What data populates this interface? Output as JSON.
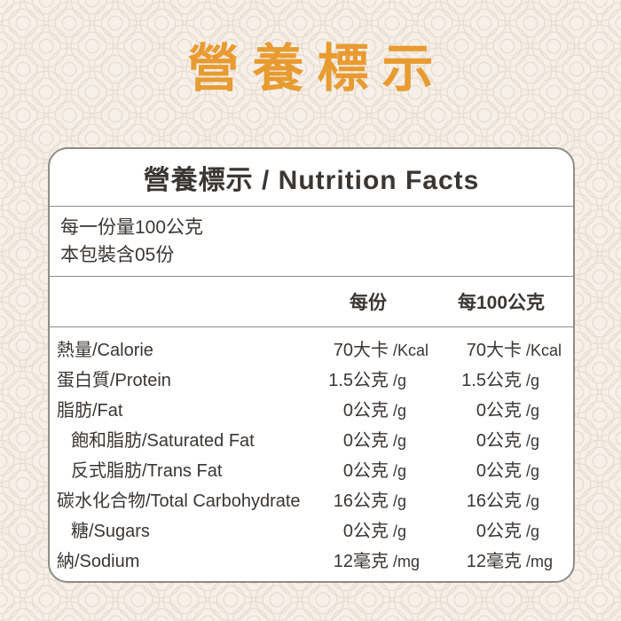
{
  "page": {
    "title": "營養標示"
  },
  "colors": {
    "accent_orange": "#E89B30",
    "text_dark": "#3A3633",
    "card_border": "#8F8B86",
    "background_cream": "#F7F0E8",
    "pattern_ring": "#E9DED2",
    "card_background": "#FFFFFF"
  },
  "card": {
    "header": {
      "title": "營養標示 / Nutrition Facts"
    },
    "serving_info": {
      "serving_size": "每一份量100公克",
      "servings_per_package": "本包裝含05份"
    },
    "columns": {
      "per_serving": "每份",
      "per_100g": "每100公克"
    },
    "rows": [
      {
        "label": "熱量/Calorie",
        "per_serving": {
          "value": "70大卡",
          "unit": "/Kcal"
        },
        "per_100g": {
          "value": "70大卡",
          "unit": "/Kcal"
        }
      },
      {
        "label": "蛋白質/Protein",
        "per_serving": {
          "value": "1.5公克",
          "unit": "/g"
        },
        "per_100g": {
          "value": "1.5公克",
          "unit": "/g"
        }
      },
      {
        "label": "脂肪/Fat",
        "per_serving": {
          "value": "0公克",
          "unit": "/g"
        },
        "per_100g": {
          "value": "0公克",
          "unit": "/g"
        }
      },
      {
        "label": "飽和脂肪/Saturated Fat",
        "per_serving": {
          "value": "0公克",
          "unit": "/g"
        },
        "per_100g": {
          "value": "0公克",
          "unit": "/g"
        }
      },
      {
        "label": "反式脂肪/Trans Fat",
        "per_serving": {
          "value": "0公克",
          "unit": "/g"
        },
        "per_100g": {
          "value": "0公克",
          "unit": "/g"
        }
      },
      {
        "label": "碳水化合物/Total Carbohydrate",
        "per_serving": {
          "value": "16公克",
          "unit": "/g"
        },
        "per_100g": {
          "value": "16公克",
          "unit": "/g"
        }
      },
      {
        "label": "糖/Sugars",
        "per_serving": {
          "value": "0公克",
          "unit": "/g"
        },
        "per_100g": {
          "value": "0公克",
          "unit": "/g"
        }
      },
      {
        "label": "納/Sodium",
        "per_serving": {
          "value": "12毫克",
          "unit": "/mg"
        },
        "per_100g": {
          "value": "12毫克",
          "unit": "/mg"
        }
      }
    ]
  }
}
